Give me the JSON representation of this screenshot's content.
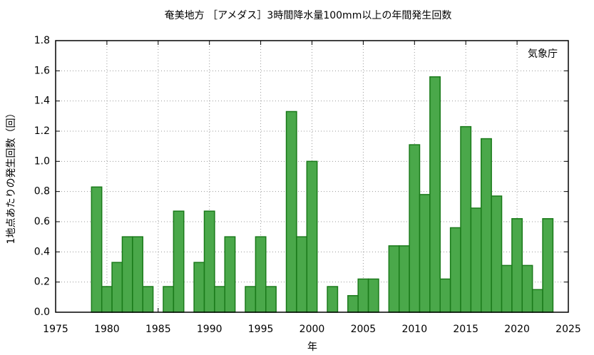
{
  "chart_data": {
    "type": "bar",
    "title": "奄美地方 ［アメダス］3時間降水量100mm以上の年間発生回数",
    "xlabel": "年",
    "ylabel": "1地点あたりの発生回数（回）",
    "annotation": "気象庁",
    "x": [
      1979,
      1980,
      1981,
      1982,
      1983,
      1984,
      1985,
      1986,
      1987,
      1988,
      1989,
      1990,
      1991,
      1992,
      1993,
      1994,
      1995,
      1996,
      1997,
      1998,
      1999,
      2000,
      2001,
      2002,
      2003,
      2004,
      2005,
      2006,
      2007,
      2008,
      2009,
      2010,
      2011,
      2012,
      2013,
      2014,
      2015,
      2016,
      2017,
      2018,
      2019,
      2020,
      2021,
      2022,
      2023
    ],
    "values": [
      0.83,
      0.17,
      0.33,
      0.5,
      0.5,
      0.17,
      0,
      0.17,
      0.67,
      0,
      0.33,
      0.67,
      0.17,
      0.5,
      0,
      0.17,
      0.5,
      0.17,
      0,
      1.33,
      0.5,
      1.0,
      0,
      0.17,
      0,
      0.11,
      0.22,
      0.22,
      0,
      0.44,
      0.44,
      1.11,
      0.78,
      1.56,
      0.22,
      0.56,
      1.23,
      0.69,
      1.15,
      0.77,
      0.31,
      0.62,
      0.31,
      0.15,
      0.62
    ],
    "color": "#4aa84a",
    "edgecolor": "#1a7a1a",
    "xlim": [
      1975,
      2025
    ],
    "xticks": [
      1975,
      1980,
      1985,
      1990,
      1995,
      2000,
      2005,
      2010,
      2015,
      2020,
      2025
    ],
    "ylim": [
      0,
      1.8
    ],
    "yticks": [
      {
        "value": 0,
        "label": "0.0"
      },
      0.2,
      0.4,
      0.6,
      0.8,
      {
        "value": 1,
        "label": "1.0"
      },
      1.2,
      1.4,
      1.6,
      1.8
    ],
    "grid": true
  }
}
